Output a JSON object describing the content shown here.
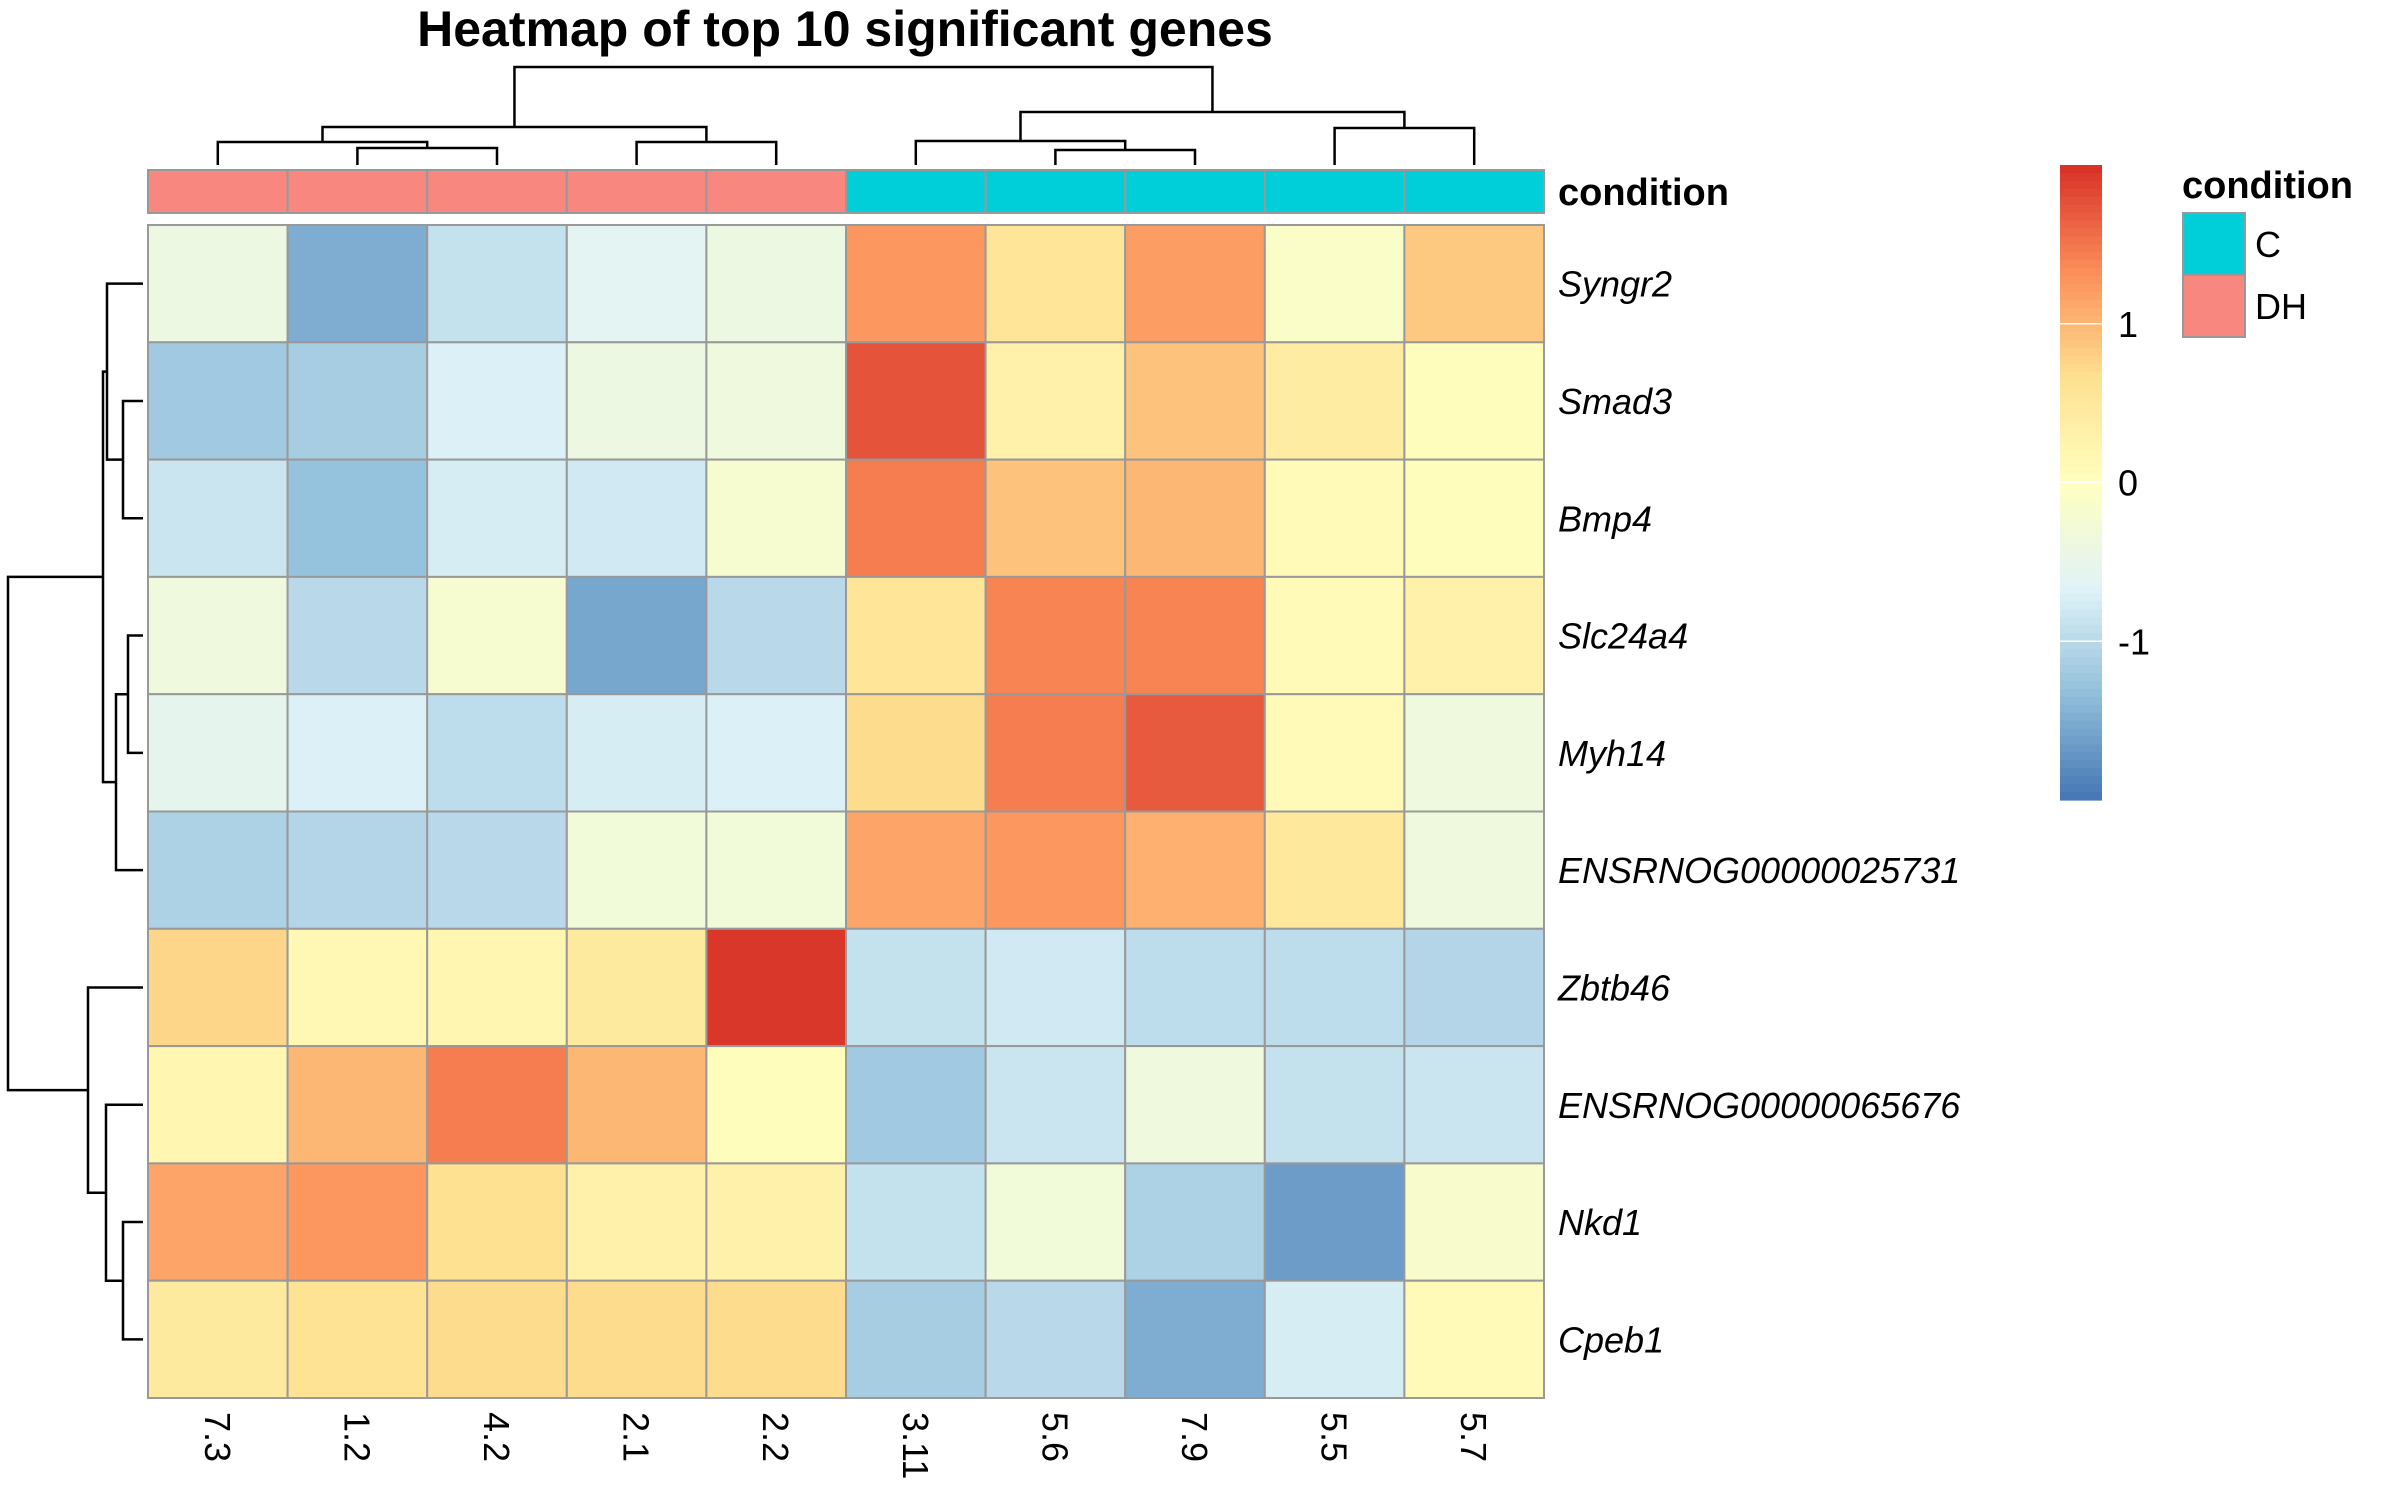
{
  "chart_data": {
    "type": "heatmap",
    "title": "Heatmap of top 10 significant genes",
    "columns": [
      "7.3",
      "1.2",
      "4.2",
      "2.1",
      "2.2",
      "3.11",
      "5.6",
      "7.9",
      "5.5",
      "5.7"
    ],
    "rows": [
      "Syngr2",
      "Smad3",
      "Bmp4",
      "Slc24a4",
      "Myh14",
      "ENSRNOG00000025731",
      "Zbtb46",
      "ENSRNOG00000065676",
      "Nkd1",
      "Cpeb1"
    ],
    "values": [
      [
        -0.4,
        -1.5,
        -0.9,
        -0.6,
        -0.4,
        1.25,
        0.55,
        1.2,
        -0.1,
        0.85
      ],
      [
        -1.2,
        -1.15,
        -0.7,
        -0.4,
        -0.35,
        1.75,
        0.3,
        0.9,
        0.4,
        0.05
      ],
      [
        -0.85,
        -1.3,
        -0.75,
        -0.8,
        -0.2,
        1.45,
        0.9,
        1.0,
        0.1,
        0.05
      ],
      [
        -0.35,
        -1.0,
        -0.2,
        -1.55,
        -1.0,
        0.55,
        1.4,
        1.4,
        0.1,
        0.3
      ],
      [
        -0.55,
        -0.7,
        -0.95,
        -0.75,
        -0.7,
        0.7,
        1.45,
        1.7,
        0.1,
        -0.35
      ],
      [
        -1.1,
        -1.05,
        -1.0,
        -0.3,
        -0.3,
        1.15,
        1.25,
        1.05,
        0.5,
        -0.35
      ],
      [
        0.75,
        0.15,
        0.2,
        0.45,
        1.95,
        -0.9,
        -0.8,
        -0.95,
        -0.95,
        -1.05
      ],
      [
        0.2,
        1.0,
        1.45,
        1.0,
        0.05,
        -1.2,
        -0.85,
        -0.35,
        -0.9,
        -0.85
      ],
      [
        1.15,
        1.25,
        0.65,
        0.3,
        0.3,
        -0.9,
        -0.3,
        -1.1,
        -1.65,
        -0.15
      ],
      [
        0.45,
        0.6,
        0.7,
        0.7,
        0.7,
        -1.15,
        -1.0,
        -1.5,
        -0.75,
        0.1
      ]
    ],
    "annotation": {
      "name": "condition",
      "values": [
        "DH",
        "DH",
        "DH",
        "DH",
        "DH",
        "C",
        "C",
        "C",
        "C",
        "C"
      ],
      "colors": {
        "C": "#00CED9",
        "DH": "#F8877F"
      }
    },
    "color_scale": {
      "range": [
        -2.0,
        2.0
      ],
      "ticks": [
        -1,
        0,
        1
      ],
      "colors": [
        "#4575B4",
        "#91BFDB",
        "#E0F3F8",
        "#FFFFBF",
        "#FEE090",
        "#FC8D59",
        "#D73027"
      ]
    },
    "legend": {
      "title": "condition",
      "items": [
        "C",
        "DH"
      ],
      "placement": "right"
    }
  },
  "colors": {
    "cell_border": "#999999",
    "dendrogram": "#000000"
  }
}
